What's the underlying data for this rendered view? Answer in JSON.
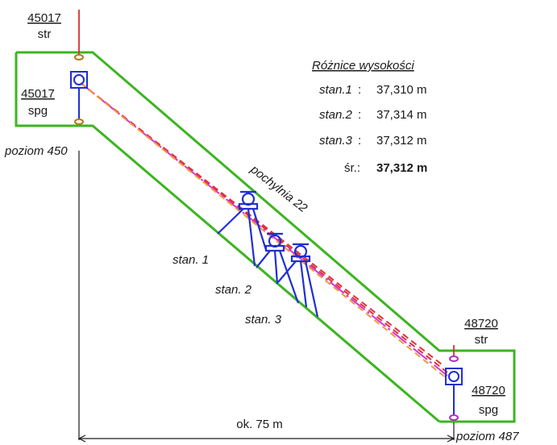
{
  "points": {
    "top_str": {
      "number": "45017",
      "type": "str"
    },
    "top_spg": {
      "number": "45017",
      "type": "spg"
    },
    "bottom_str": {
      "number": "48720",
      "type": "str"
    },
    "bottom_spg": {
      "number": "48720",
      "type": "spg"
    }
  },
  "levels": {
    "top": "poziom 450",
    "bottom": "poziom 487"
  },
  "incline": "pochylnia 22",
  "stations": [
    "stan. 1",
    "stan. 2",
    "stan. 3"
  ],
  "distance": "ok. 75 m",
  "results": {
    "title": "Różnice wysokości",
    "rows": [
      {
        "station": "stan.1",
        "value": "37,310 m"
      },
      {
        "station": "stan.2",
        "value": "37,314 m"
      },
      {
        "station": "stan.3",
        "value": "37,312 m"
      }
    ],
    "mean_label": "śr.:",
    "mean_value": "37,312 m"
  },
  "colors": {
    "wall": "#3cb521",
    "instrument": "#1f2fd1",
    "sight_red": "#e0303a",
    "sight_magenta": "#d334d8",
    "sight_orange": "#f09a38",
    "plumb": "#d83030"
  }
}
